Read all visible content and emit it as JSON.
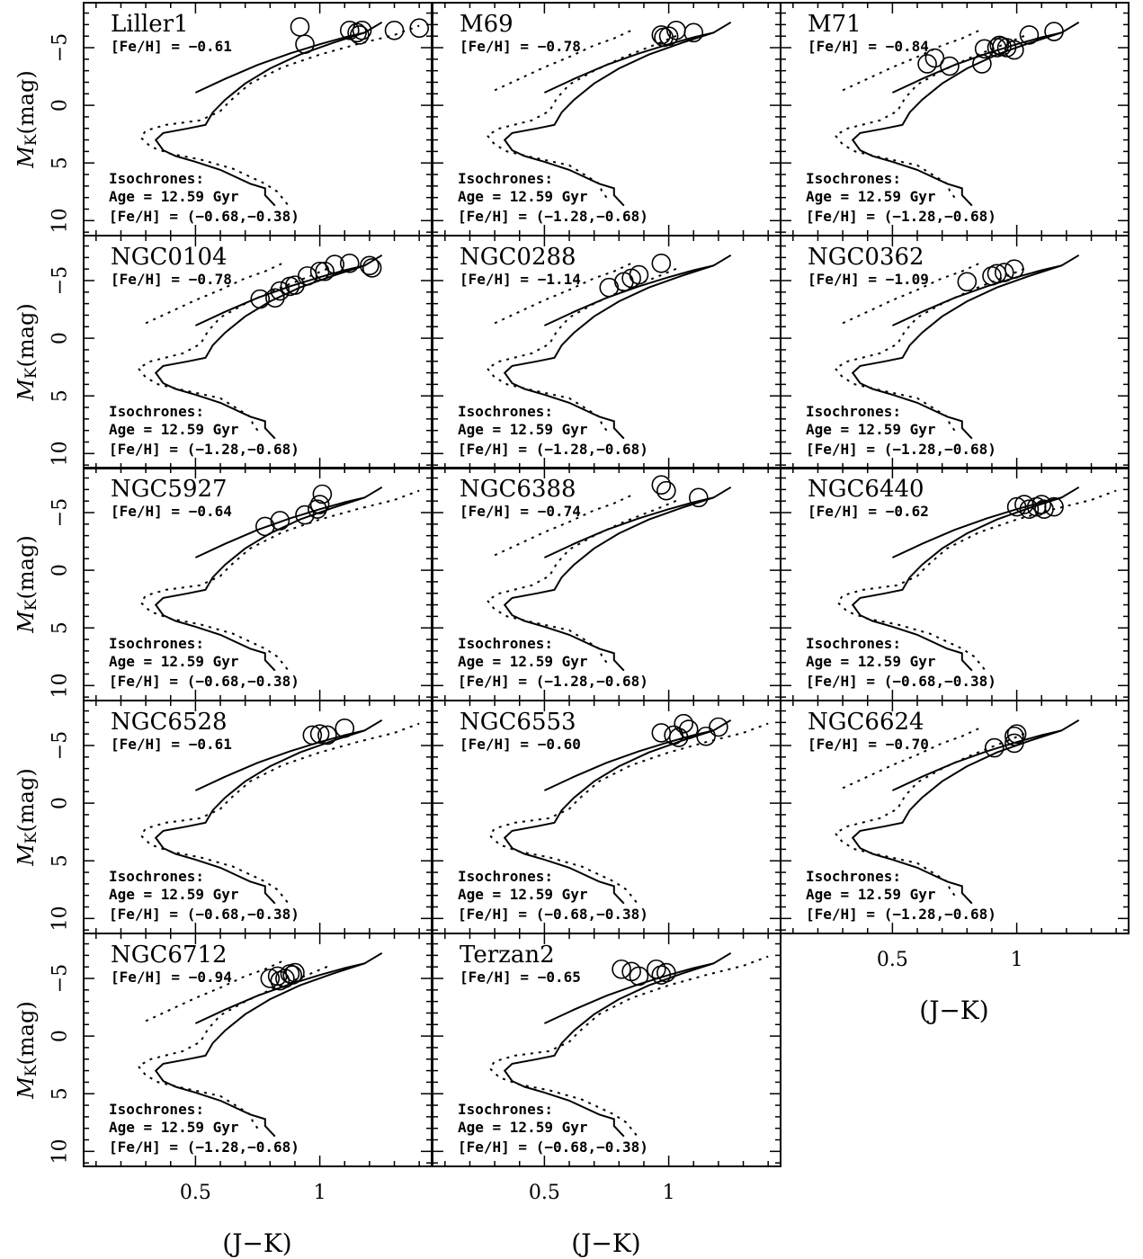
{
  "chart_data": {
    "type": "scatter",
    "xlabel": "(J−K)",
    "ylabel_main": "M",
    "ylabel_sub": "K",
    "ylabel_unit": "(mag)",
    "xlim": [
      0.05,
      1.45
    ],
    "ylim": [
      11.3,
      -8.9
    ],
    "x_ticks": [
      0.5,
      1
    ],
    "x_tick_labels": [
      "0.5",
      "1"
    ],
    "y_ticks": [
      -5,
      0,
      5,
      10
    ],
    "y_tick_labels": [
      "−5",
      "0",
      "5",
      "10"
    ],
    "isochrone_label": "Isochrones:",
    "age_label": "Age = 12.59 Gyr",
    "isochrone_sets": {
      "metal_rich": "[Fe/H] = (−0.68,−0.38)",
      "metal_poor": "[Fe/H] = (−1.28,−0.68)"
    },
    "isochrones": {
      "metal_rich_solid": [
        [
          0.82,
          8.7
        ],
        [
          0.78,
          7.8
        ],
        [
          0.78,
          7.2
        ],
        [
          0.72,
          6.8
        ],
        [
          0.6,
          5.6
        ],
        [
          0.5,
          4.9
        ],
        [
          0.42,
          4.4
        ],
        [
          0.37,
          3.9
        ],
        [
          0.34,
          3.0
        ],
        [
          0.37,
          2.4
        ],
        [
          0.47,
          2.0
        ],
        [
          0.54,
          1.7
        ],
        [
          0.57,
          0.6
        ],
        [
          0.62,
          -0.5
        ],
        [
          0.7,
          -1.9
        ],
        [
          0.8,
          -3.2
        ],
        [
          0.92,
          -4.4
        ],
        [
          1.05,
          -5.4
        ],
        [
          1.18,
          -6.3
        ],
        [
          1.25,
          -7.2
        ]
      ],
      "metal_rich_rgb": [
        [
          0.5,
          -1.1
        ],
        [
          0.62,
          -2.3
        ],
        [
          0.75,
          -3.5
        ],
        [
          0.88,
          -4.5
        ],
        [
          1.0,
          -5.3
        ],
        [
          1.1,
          -5.9
        ],
        [
          1.18,
          -6.3
        ]
      ],
      "metal_rich_dashed": [
        [
          0.87,
          8.6
        ],
        [
          0.83,
          7.5
        ],
        [
          0.78,
          6.8
        ],
        [
          0.65,
          5.5
        ],
        [
          0.52,
          4.7
        ],
        [
          0.4,
          4.2
        ],
        [
          0.32,
          3.6
        ],
        [
          0.28,
          2.8
        ],
        [
          0.3,
          2.2
        ],
        [
          0.38,
          1.7
        ],
        [
          0.52,
          1.3
        ],
        [
          0.6,
          0.5
        ],
        [
          0.64,
          -0.4
        ],
        [
          0.72,
          -1.9
        ],
        [
          0.85,
          -3.3
        ],
        [
          1.0,
          -4.4
        ],
        [
          1.15,
          -5.3
        ],
        [
          1.3,
          -6.1
        ],
        [
          1.4,
          -6.9
        ]
      ],
      "metal_poor_solid": [
        [
          0.82,
          8.7
        ],
        [
          0.78,
          7.8
        ],
        [
          0.78,
          7.2
        ],
        [
          0.72,
          6.8
        ],
        [
          0.6,
          5.6
        ],
        [
          0.5,
          4.9
        ],
        [
          0.42,
          4.4
        ],
        [
          0.37,
          3.9
        ],
        [
          0.34,
          3.0
        ],
        [
          0.37,
          2.4
        ],
        [
          0.47,
          2.0
        ],
        [
          0.54,
          1.7
        ],
        [
          0.57,
          0.6
        ],
        [
          0.62,
          -0.5
        ],
        [
          0.7,
          -1.9
        ],
        [
          0.8,
          -3.2
        ],
        [
          0.92,
          -4.4
        ],
        [
          1.05,
          -5.4
        ],
        [
          1.18,
          -6.3
        ],
        [
          1.25,
          -7.2
        ]
      ],
      "metal_poor_rgb": [
        [
          0.5,
          -1.1
        ],
        [
          0.62,
          -2.3
        ],
        [
          0.75,
          -3.5
        ],
        [
          0.88,
          -4.5
        ],
        [
          1.0,
          -5.3
        ],
        [
          1.1,
          -5.9
        ],
        [
          1.18,
          -6.3
        ]
      ],
      "metal_poor_dotted": [
        [
          0.75,
          8.0
        ],
        [
          0.73,
          7.4
        ],
        [
          0.72,
          6.8
        ],
        [
          0.6,
          5.2
        ],
        [
          0.45,
          4.5
        ],
        [
          0.35,
          4.0
        ],
        [
          0.3,
          3.4
        ],
        [
          0.27,
          2.6
        ],
        [
          0.32,
          2.0
        ],
        [
          0.45,
          1.3
        ],
        [
          0.52,
          0.5
        ],
        [
          0.55,
          -0.6
        ],
        [
          0.6,
          -1.8
        ],
        [
          0.7,
          -3.0
        ],
        [
          0.82,
          -4.2
        ],
        [
          0.95,
          -5.3
        ],
        [
          1.05,
          -6.2
        ]
      ],
      "metal_poor_hb": [
        [
          0.3,
          -1.3
        ],
        [
          0.4,
          -2.3
        ],
        [
          0.5,
          -3.3
        ],
        [
          0.6,
          -4.2
        ],
        [
          0.7,
          -5.2
        ],
        [
          0.78,
          -5.8
        ],
        [
          0.85,
          -6.5
        ]
      ]
    },
    "panels": [
      {
        "name": "Liller1",
        "feh": "[Fe/H] = −0.61",
        "iso": "metal_rich",
        "stars": [
          [
            0.92,
            -6.8
          ],
          [
            0.94,
            -5.3
          ],
          [
            1.12,
            -6.5
          ],
          [
            1.15,
            -6.3
          ],
          [
            1.16,
            -6.1
          ],
          [
            1.17,
            -6.5
          ],
          [
            1.3,
            -6.5
          ],
          [
            1.4,
            -6.7
          ]
        ]
      },
      {
        "name": "M69",
        "feh": "[Fe/H] = −0.78",
        "iso": "metal_poor",
        "stars": [
          [
            0.97,
            -6.1
          ],
          [
            0.98,
            -5.9
          ],
          [
            1.0,
            -6.0
          ],
          [
            1.03,
            -6.5
          ],
          [
            1.1,
            -6.3
          ]
        ]
      },
      {
        "name": "M71",
        "feh": "[Fe/H] = −0.84",
        "iso": "metal_poor",
        "stars": [
          [
            0.64,
            -3.6
          ],
          [
            0.67,
            -4.1
          ],
          [
            0.73,
            -3.4
          ],
          [
            0.86,
            -3.6
          ],
          [
            0.87,
            -4.9
          ],
          [
            0.92,
            -5.0
          ],
          [
            0.93,
            -5.2
          ],
          [
            0.94,
            -5.1
          ],
          [
            0.96,
            -5.0
          ],
          [
            0.99,
            -4.8
          ],
          [
            1.05,
            -6.1
          ],
          [
            1.15,
            -6.4
          ]
        ]
      },
      {
        "name": "NGC0104",
        "feh": "[Fe/H] = −0.78",
        "iso": "metal_poor",
        "stars": [
          [
            0.76,
            -3.4
          ],
          [
            0.82,
            -3.5
          ],
          [
            0.84,
            -4.1
          ],
          [
            0.88,
            -4.5
          ],
          [
            0.9,
            -4.6
          ],
          [
            0.95,
            -5.4
          ],
          [
            1.0,
            -5.8
          ],
          [
            1.02,
            -5.8
          ],
          [
            1.06,
            -6.4
          ],
          [
            1.12,
            -6.5
          ],
          [
            1.2,
            -6.3
          ],
          [
            1.21,
            -6.1
          ]
        ]
      },
      {
        "name": "NGC0288",
        "feh": "[Fe/H] = −1.14",
        "iso": "metal_poor",
        "stars": [
          [
            0.76,
            -4.4
          ],
          [
            0.82,
            -4.9
          ],
          [
            0.85,
            -5.2
          ],
          [
            0.88,
            -5.5
          ],
          [
            0.97,
            -6.5
          ]
        ]
      },
      {
        "name": "NGC0362",
        "feh": "[Fe/H] = −1.09",
        "iso": "metal_poor",
        "stars": [
          [
            0.8,
            -4.9
          ],
          [
            0.9,
            -5.4
          ],
          [
            0.92,
            -5.6
          ],
          [
            0.95,
            -5.7
          ],
          [
            0.99,
            -6.0
          ]
        ]
      },
      {
        "name": "NGC5927",
        "feh": "[Fe/H] = −0.64",
        "iso": "metal_rich",
        "stars": [
          [
            0.78,
            -3.8
          ],
          [
            0.84,
            -4.3
          ],
          [
            0.94,
            -4.8
          ],
          [
            0.99,
            -5.3
          ],
          [
            1.0,
            -5.7
          ],
          [
            1.01,
            -6.6
          ]
        ]
      },
      {
        "name": "NGC6388",
        "feh": "[Fe/H] = −0.74",
        "iso": "metal_poor",
        "stars": [
          [
            0.97,
            -7.4
          ],
          [
            0.99,
            -6.9
          ],
          [
            1.12,
            -6.3
          ]
        ]
      },
      {
        "name": "NGC6440",
        "feh": "[Fe/H] = −0.62",
        "iso": "metal_rich",
        "stars": [
          [
            1.0,
            -5.5
          ],
          [
            1.03,
            -5.7
          ],
          [
            1.05,
            -5.3
          ],
          [
            1.08,
            -5.5
          ],
          [
            1.1,
            -5.7
          ],
          [
            1.11,
            -5.3
          ],
          [
            1.15,
            -5.5
          ]
        ]
      },
      {
        "name": "NGC6528",
        "feh": "[Fe/H] = −0.61",
        "iso": "metal_rich",
        "stars": [
          [
            0.97,
            -5.9
          ],
          [
            1.0,
            -6.0
          ],
          [
            1.03,
            -5.9
          ],
          [
            1.1,
            -6.5
          ]
        ]
      },
      {
        "name": "NGC6553",
        "feh": "[Fe/H] = −0.60",
        "iso": "metal_rich",
        "stars": [
          [
            0.97,
            -6.1
          ],
          [
            1.02,
            -5.9
          ],
          [
            1.04,
            -5.7
          ],
          [
            1.06,
            -6.9
          ],
          [
            1.08,
            -6.4
          ],
          [
            1.15,
            -5.8
          ],
          [
            1.2,
            -6.6
          ]
        ]
      },
      {
        "name": "NGC6624",
        "feh": "[Fe/H] = −0.70",
        "iso": "metal_poor",
        "stars": [
          [
            0.91,
            -4.8
          ],
          [
            0.99,
            -5.2
          ],
          [
            0.99,
            -5.8
          ],
          [
            1.0,
            -6.0
          ]
        ]
      },
      {
        "name": "NGC6712",
        "feh": "[Fe/H] = −0.94",
        "iso": "metal_poor",
        "stars": [
          [
            0.8,
            -5.0
          ],
          [
            0.83,
            -5.2
          ],
          [
            0.84,
            -4.8
          ],
          [
            0.86,
            -5.0
          ],
          [
            0.88,
            -5.4
          ],
          [
            0.89,
            -5.3
          ],
          [
            0.9,
            -5.5
          ]
        ]
      },
      {
        "name": "Terzan2",
        "feh": "[Fe/H] = −0.65",
        "iso": "metal_rich",
        "stars": [
          [
            0.81,
            -5.8
          ],
          [
            0.85,
            -5.6
          ],
          [
            0.88,
            -5.2
          ],
          [
            0.95,
            -5.8
          ],
          [
            0.97,
            -5.3
          ],
          [
            0.99,
            -5.5
          ]
        ]
      }
    ]
  }
}
